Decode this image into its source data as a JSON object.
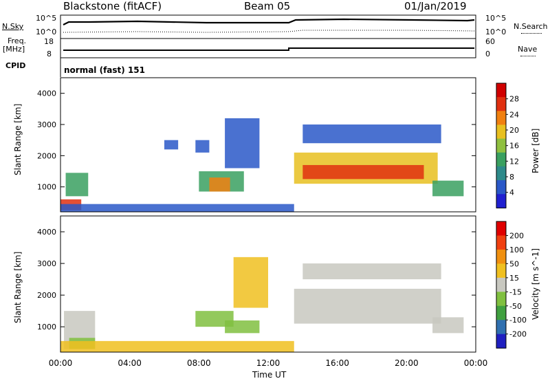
{
  "header": {
    "title": "Blackstone (fitACF)",
    "beam": "Beam 05",
    "date": "01/Jan/2019"
  },
  "side_labels": {
    "n_sky": "N.Sky",
    "n_search": "N.Search",
    "freq": "Freq.",
    "freq_unit": "[MHz]",
    "nave": "Nave",
    "cpid": "CPID",
    "cpid_value": "normal (fast) 151"
  },
  "small_scales": {
    "noise_ticks": [
      "10^5",
      "10^0"
    ],
    "freq_ticks": [
      "18",
      "8"
    ],
    "nave_ticks": [
      "60",
      "0"
    ]
  },
  "colors": {
    "power_scale": [
      "#2020d0",
      "#2a58c8",
      "#2e8a8a",
      "#3aa060",
      "#90c040",
      "#e8c020",
      "#f08010",
      "#e03010",
      "#d00000"
    ],
    "velocity_scale": [
      "#e00000",
      "#f04010",
      "#f09010",
      "#f0c020",
      "#c8c8c0",
      "#80c040",
      "#40a040",
      "#3070b0",
      "#2020c0"
    ],
    "noise_line": "#000000"
  },
  "chart_data": [
    {
      "type": "heatmap",
      "quantity": "Power",
      "xlabel": "",
      "ylabel": "Slant Range [km]",
      "x_ticks": [
        "00:00",
        "04:00",
        "08:00",
        "12:00",
        "16:00",
        "20:00",
        "00:00"
      ],
      "y_ticks": [
        "1000",
        "2000",
        "3000",
        "4000"
      ],
      "xlim": [
        0,
        24
      ],
      "ylim": [
        200,
        4500
      ],
      "colorbar": {
        "label": "Power [dB]",
        "ticks": [
          "4",
          "8",
          "12",
          "16",
          "20",
          "24",
          "28"
        ],
        "range": [
          0,
          32
        ]
      },
      "regions": [
        {
          "t0": 0.0,
          "t1": 1.2,
          "r0": 250,
          "r1": 600,
          "level": 28
        },
        {
          "t0": 0.3,
          "t1": 1.6,
          "r0": 700,
          "r1": 1450,
          "level": 14
        },
        {
          "t0": 0.0,
          "t1": 13.5,
          "r0": 200,
          "r1": 450,
          "level": 6
        },
        {
          "t0": 6.0,
          "t1": 6.8,
          "r0": 2200,
          "r1": 2500,
          "level": 6
        },
        {
          "t0": 7.8,
          "t1": 8.6,
          "r0": 2100,
          "r1": 2500,
          "level": 6
        },
        {
          "t0": 8.0,
          "t1": 10.6,
          "r0": 850,
          "r1": 1500,
          "level": 12
        },
        {
          "t0": 8.6,
          "t1": 9.8,
          "r0": 850,
          "r1": 1300,
          "level": 22
        },
        {
          "t0": 9.5,
          "t1": 11.5,
          "r0": 1600,
          "r1": 3200,
          "level": 6
        },
        {
          "t0": 13.5,
          "t1": 21.8,
          "r0": 1100,
          "r1": 2100,
          "level": 18
        },
        {
          "t0": 14.0,
          "t1": 21.0,
          "r0": 1250,
          "r1": 1700,
          "level": 27
        },
        {
          "t0": 14.0,
          "t1": 22.0,
          "r0": 2400,
          "r1": 3000,
          "level": 6
        },
        {
          "t0": 21.5,
          "t1": 23.3,
          "r0": 700,
          "r1": 1200,
          "level": 12
        }
      ]
    },
    {
      "type": "heatmap",
      "quantity": "Velocity",
      "xlabel": "Time UT",
      "ylabel": "Slant Range [km]",
      "x_ticks": [
        "00:00",
        "04:00",
        "08:00",
        "12:00",
        "16:00",
        "20:00",
        "00:00"
      ],
      "y_ticks": [
        "1000",
        "2000",
        "3000",
        "4000"
      ],
      "xlim": [
        0,
        24
      ],
      "ylim": [
        200,
        4500
      ],
      "colorbar": {
        "label": "Velocity [m s^-1]",
        "ticks": [
          "200",
          "100",
          "50",
          "15",
          "-15",
          "-50",
          "-100",
          "-200"
        ],
        "range": [
          -250,
          250
        ]
      },
      "regions": [
        {
          "t0": 0.2,
          "t1": 2.0,
          "r0": 300,
          "r1": 1500,
          "level": 0
        },
        {
          "t0": 0.5,
          "t1": 2.0,
          "r0": 300,
          "r1": 650,
          "level": -60
        },
        {
          "t0": 0.0,
          "t1": 13.5,
          "r0": 200,
          "r1": 550,
          "level": 40
        },
        {
          "t0": 7.8,
          "t1": 10.0,
          "r0": 1000,
          "r1": 1500,
          "level": -50
        },
        {
          "t0": 9.5,
          "t1": 11.5,
          "r0": 800,
          "r1": 1200,
          "level": -40
        },
        {
          "t0": 10.0,
          "t1": 12.0,
          "r0": 1600,
          "r1": 3200,
          "level": 30
        },
        {
          "t0": 13.5,
          "t1": 22.0,
          "r0": 1100,
          "r1": 2200,
          "level": 0
        },
        {
          "t0": 14.0,
          "t1": 22.0,
          "r0": 2500,
          "r1": 3000,
          "level": 0
        },
        {
          "t0": 21.5,
          "t1": 23.3,
          "r0": 800,
          "r1": 1300,
          "level": 0
        }
      ]
    }
  ]
}
